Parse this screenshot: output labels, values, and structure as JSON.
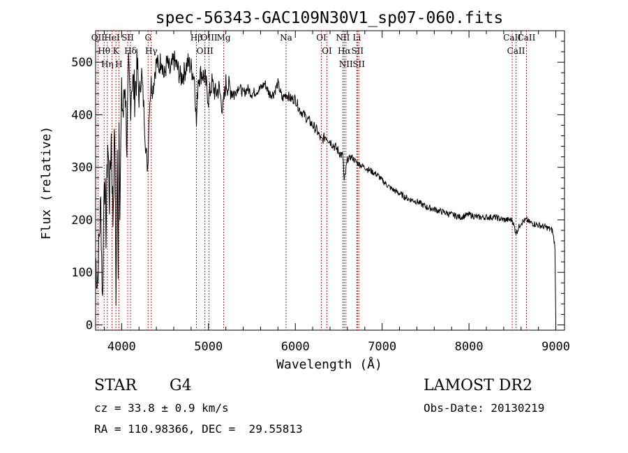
{
  "chart_data": {
    "type": "line",
    "title": "spec-56343-GAC109N30V1_sp07-060.fits",
    "xlabel": "Wavelength (Å)",
    "ylabel": "Flux (relative)",
    "xlim": [
      3700,
      9100
    ],
    "ylim": [
      -10,
      560
    ],
    "xticks": [
      4000,
      5000,
      6000,
      7000,
      8000,
      9000
    ],
    "xtick_labels": [
      "4000",
      "5000",
      "6000",
      "7000",
      "8000",
      "9000"
    ],
    "yticks": [
      0,
      100,
      200,
      300,
      400,
      500
    ],
    "ytick_labels": [
      "0",
      "100",
      "200",
      "300",
      "400",
      "500"
    ],
    "grid": false,
    "line_color": "#000000",
    "marker_color": "#b22222",
    "series": [
      {
        "x": [
          3700,
          3720,
          3740,
          3760,
          3780,
          3800,
          3820,
          3840,
          3860,
          3880,
          3900,
          3920,
          3935,
          3950,
          3960,
          3970,
          3980,
          4000,
          4020,
          4040,
          4060,
          4080,
          4100,
          4120,
          4150,
          4180,
          4200,
          4230,
          4260,
          4280,
          4300,
          4320,
          4340,
          4360,
          4380,
          4400,
          4430,
          4460,
          4490,
          4520,
          4560,
          4600,
          4640,
          4680,
          4720,
          4760,
          4800,
          4840,
          4861,
          4880,
          4920,
          4960,
          5000,
          5040,
          5080,
          5120,
          5167,
          5200,
          5250,
          5300,
          5350,
          5400,
          5450,
          5500,
          5550,
          5600,
          5650,
          5700,
          5750,
          5800,
          5850,
          5893,
          5950,
          6000,
          6050,
          6100,
          6150,
          6200,
          6250,
          6300,
          6350,
          6400,
          6450,
          6500,
          6550,
          6563,
          6600,
          6650,
          6700,
          6750,
          6800,
          6850,
          6900,
          6950,
          7000,
          7100,
          7200,
          7300,
          7400,
          7500,
          7600,
          7700,
          7800,
          7900,
          8000,
          8100,
          8200,
          8300,
          8400,
          8498,
          8542,
          8600,
          8662,
          8700,
          8800,
          8900,
          8960,
          8990,
          9000
        ],
        "y": [
          130,
          80,
          160,
          230,
          40,
          300,
          180,
          350,
          240,
          360,
          200,
          380,
          60,
          310,
          120,
          390,
          240,
          430,
          400,
          470,
          340,
          480,
          420,
          470,
          440,
          490,
          430,
          480,
          400,
          330,
          300,
          420,
          460,
          450,
          480,
          500,
          490,
          510,
          470,
          500,
          480,
          505,
          490,
          470,
          480,
          500,
          490,
          470,
          380,
          470,
          480,
          470,
          430,
          460,
          440,
          450,
          410,
          460,
          450,
          440,
          455,
          440,
          450,
          440,
          445,
          450,
          460,
          440,
          440,
          460,
          430,
          440,
          430,
          430,
          410,
          400,
          390,
          380,
          370,
          350,
          360,
          350,
          340,
          330,
          320,
          270,
          315,
          320,
          310,
          305,
          300,
          295,
          290,
          285,
          275,
          260,
          250,
          240,
          235,
          225,
          220,
          215,
          210,
          205,
          210,
          205,
          205,
          205,
          200,
          200,
          175,
          195,
          200,
          195,
          190,
          185,
          180,
          150,
          0
        ]
      }
    ],
    "lines": [
      {
        "label": "Hθ",
        "x": 3798
      },
      {
        "label": "Hη",
        "x": 3835
      },
      {
        "label": "HeI",
        "x": 3889
      },
      {
        "label": "K",
        "x": 3934
      },
      {
        "label": "H",
        "x": 3968
      },
      {
        "label": "Hδ",
        "x": 4102
      },
      {
        "label": "SII",
        "x": 4070
      },
      {
        "label": "G",
        "x": 4305
      },
      {
        "label": "Hγ",
        "x": 4341
      },
      {
        "label": "Hβ",
        "x": 4861
      },
      {
        "label": "OIII",
        "x": 4959
      },
      {
        "label": "OIII",
        "x": 5007
      },
      {
        "label": "Mg",
        "x": 5175
      },
      {
        "label": "Na",
        "x": 5893
      },
      {
        "label": "OI",
        "x": 6300
      },
      {
        "label": "OI",
        "x": 6364
      },
      {
        "label": "NII",
        "x": 6548
      },
      {
        "label": "Hα",
        "x": 6563
      },
      {
        "label": "NII",
        "x": 6583
      },
      {
        "label": "Li",
        "x": 6708
      },
      {
        "label": "SII",
        "x": 6716
      },
      {
        "label": "SII",
        "x": 6731
      },
      {
        "label": "CaII",
        "x": 8498
      },
      {
        "label": "CaII",
        "x": 8542
      },
      {
        "label": "CaII",
        "x": 8662
      },
      {
        "label": "OII",
        "x": 3727
      }
    ]
  },
  "info": {
    "class_label": "STAR",
    "subclass": "G4",
    "survey": "LAMOST DR2",
    "cz": "cz = 33.8 ± 0.9 km/s",
    "obs_date": "Obs-Date: 20130219",
    "coords": "RA = 110.98366, DEC =  29.55813"
  }
}
